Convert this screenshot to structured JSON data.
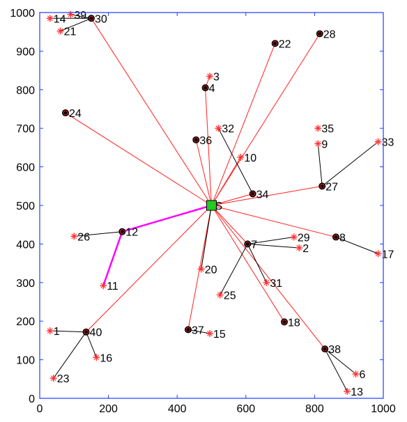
{
  "chart_data": {
    "type": "scatter",
    "xlim": [
      0,
      1000
    ],
    "ylim": [
      0,
      1000
    ],
    "x_ticks": [
      "0",
      "200",
      "400",
      "600",
      "800",
      "1000"
    ],
    "y_ticks": [
      "0",
      "100",
      "200",
      "300",
      "400",
      "500",
      "600",
      "700",
      "800",
      "900",
      "1000"
    ],
    "grid": false,
    "colors": {
      "frame": "#1f3cff",
      "red_line": "#ff2020",
      "black_line": "#000000",
      "magenta_line": "#ff00ff",
      "red_marker": "#ff3030",
      "black_marker": "#000000",
      "sink_fill": "#22cc22"
    },
    "sink": {
      "label": "S",
      "x": 500,
      "y": 500
    },
    "red_points": [
      {
        "label": "14",
        "x": 30,
        "y": 985
      },
      {
        "label": "39",
        "x": 90,
        "y": 995
      },
      {
        "label": "21",
        "x": 60,
        "y": 952
      },
      {
        "label": "3",
        "x": 495,
        "y": 835
      },
      {
        "label": "32",
        "x": 520,
        "y": 700
      },
      {
        "label": "10",
        "x": 585,
        "y": 625
      },
      {
        "label": "35",
        "x": 810,
        "y": 700
      },
      {
        "label": "9",
        "x": 810,
        "y": 660
      },
      {
        "label": "33",
        "x": 985,
        "y": 665
      },
      {
        "label": "26",
        "x": 100,
        "y": 420
      },
      {
        "label": "29",
        "x": 740,
        "y": 418
      },
      {
        "label": "2",
        "x": 755,
        "y": 390
      },
      {
        "label": "17",
        "x": 985,
        "y": 375
      },
      {
        "label": "11",
        "x": 185,
        "y": 292
      },
      {
        "label": "20",
        "x": 470,
        "y": 335
      },
      {
        "label": "31",
        "x": 660,
        "y": 300
      },
      {
        "label": "25",
        "x": 525,
        "y": 268
      },
      {
        "label": "1",
        "x": 30,
        "y": 175
      },
      {
        "label": "15",
        "x": 495,
        "y": 168
      },
      {
        "label": "16",
        "x": 165,
        "y": 106
      },
      {
        "label": "23",
        "x": 40,
        "y": 52
      },
      {
        "label": "6",
        "x": 920,
        "y": 63
      },
      {
        "label": "13",
        "x": 895,
        "y": 18
      }
    ],
    "black_points": [
      {
        "label": "30",
        "x": 150,
        "y": 985
      },
      {
        "label": "22",
        "x": 685,
        "y": 920
      },
      {
        "label": "28",
        "x": 815,
        "y": 945
      },
      {
        "label": "4",
        "x": 482,
        "y": 805
      },
      {
        "label": "24",
        "x": 75,
        "y": 740
      },
      {
        "label": "36",
        "x": 455,
        "y": 670
      },
      {
        "label": "34",
        "x": 620,
        "y": 530
      },
      {
        "label": "27",
        "x": 822,
        "y": 550
      },
      {
        "label": "12",
        "x": 240,
        "y": 432
      },
      {
        "label": "7",
        "x": 605,
        "y": 400
      },
      {
        "label": "8",
        "x": 862,
        "y": 418
      },
      {
        "label": "18",
        "x": 712,
        "y": 198
      },
      {
        "label": "37",
        "x": 432,
        "y": 178
      },
      {
        "label": "40",
        "x": 135,
        "y": 172
      },
      {
        "label": "38",
        "x": 830,
        "y": 128
      }
    ],
    "red_links": [
      [
        "S",
        "30"
      ],
      [
        "S",
        "24"
      ],
      [
        "S",
        "4"
      ],
      [
        "S",
        "36"
      ],
      [
        "S",
        "22"
      ],
      [
        "S",
        "28"
      ],
      [
        "S",
        "10"
      ],
      [
        "S",
        "34"
      ],
      [
        "S",
        "27"
      ],
      [
        "S",
        "8"
      ],
      [
        "S",
        "7"
      ],
      [
        "S",
        "18"
      ],
      [
        "S",
        "38"
      ],
      [
        "S",
        "40"
      ],
      [
        "S",
        "37"
      ],
      [
        "S",
        "20"
      ],
      [
        "4",
        "3"
      ]
    ],
    "black_links": [
      [
        "30",
        "14"
      ],
      [
        "30",
        "39"
      ],
      [
        "30",
        "21"
      ],
      [
        "34",
        "32"
      ],
      [
        "27",
        "9"
      ],
      [
        "27",
        "33"
      ],
      [
        "12",
        "26"
      ],
      [
        "7",
        "29"
      ],
      [
        "7",
        "2"
      ],
      [
        "7",
        "25"
      ],
      [
        "7",
        "31"
      ],
      [
        "8",
        "17"
      ],
      [
        "40",
        "1"
      ],
      [
        "40",
        "16"
      ],
      [
        "40",
        "23"
      ],
      [
        "37",
        "15"
      ],
      [
        "38",
        "6"
      ],
      [
        "38",
        "13"
      ],
      [
        "S",
        "20"
      ]
    ],
    "magenta_links": [
      [
        "S",
        "12"
      ],
      [
        "12",
        "11"
      ]
    ]
  }
}
